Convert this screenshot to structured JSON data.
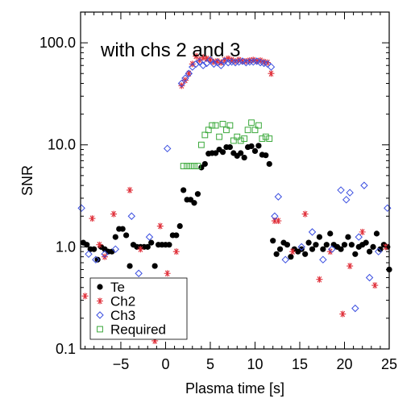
{
  "chart_data": {
    "type": "scatter",
    "annotation": "with chs 2 and 3",
    "xlabel": "Plasma time [s]",
    "ylabel": "SNR",
    "xlim": [
      -9.5,
      25
    ],
    "ylim": [
      0.1,
      200
    ],
    "yscale": "log",
    "x_ticks": [
      -5,
      0,
      5,
      10,
      15,
      20,
      25
    ],
    "x_tick_labels": [
      "−5",
      "0",
      "5",
      "10",
      "15",
      "20",
      "25"
    ],
    "y_ticks": [
      0.1,
      1,
      10,
      100
    ],
    "y_tick_labels": [
      "0.1",
      "1.0",
      "10.0",
      "100.0"
    ],
    "legend_position": "bottom-left",
    "series": [
      {
        "name": "Te",
        "marker": "filled-circle",
        "color": "#000000",
        "points": [
          [
            -9.2,
            1.1
          ],
          [
            -8.8,
            1.05
          ],
          [
            -8.4,
            0.95
          ],
          [
            -8,
            0.95
          ],
          [
            -7.6,
            0.75
          ],
          [
            -7.2,
            1.0
          ],
          [
            -6.8,
            0.95
          ],
          [
            -6.4,
            0.9
          ],
          [
            -6,
            0.9
          ],
          [
            -5.6,
            1.25
          ],
          [
            -5.2,
            1.5
          ],
          [
            -4.8,
            1.5
          ],
          [
            -4.4,
            1.3
          ],
          [
            -4,
            0.65
          ],
          [
            -3.6,
            1.05
          ],
          [
            -3.2,
            1.0
          ],
          [
            -2.8,
            1.0
          ],
          [
            -2.4,
            1.0
          ],
          [
            -2,
            1.0
          ],
          [
            -1.6,
            1.1
          ],
          [
            -1.2,
            0.65
          ],
          [
            -0.8,
            1.05
          ],
          [
            -0.4,
            1.05
          ],
          [
            0,
            1.05
          ],
          [
            0.4,
            1.05
          ],
          [
            0.8,
            1.3
          ],
          [
            1.2,
            1.3
          ],
          [
            1.6,
            1.6
          ],
          [
            2,
            3.6
          ],
          [
            2.4,
            2.9
          ],
          [
            2.8,
            2.9
          ],
          [
            3.2,
            2.7
          ],
          [
            3.6,
            3.3
          ],
          [
            4,
            6.0
          ],
          [
            4.4,
            6.5
          ],
          [
            4.8,
            8.2
          ],
          [
            5.2,
            8.3
          ],
          [
            5.6,
            8.3
          ],
          [
            6,
            9.0
          ],
          [
            6.4,
            8.5
          ],
          [
            6.8,
            9.5
          ],
          [
            7.2,
            9.5
          ],
          [
            7.6,
            8.3
          ],
          [
            8,
            7.8
          ],
          [
            8.4,
            8.3
          ],
          [
            8.8,
            7.5
          ],
          [
            9.2,
            9.5
          ],
          [
            9.6,
            9.7
          ],
          [
            10,
            8.7
          ],
          [
            10.4,
            9.8
          ],
          [
            10.8,
            8.0
          ],
          [
            11.2,
            7.9
          ],
          [
            11.6,
            6.5
          ],
          [
            12,
            1.15
          ],
          [
            12.4,
            0.85
          ],
          [
            12.8,
            0.95
          ],
          [
            13.2,
            1.1
          ],
          [
            13.6,
            1.05
          ],
          [
            14,
            0.8
          ],
          [
            14.4,
            0.95
          ],
          [
            14.8,
            0.9
          ],
          [
            15.2,
            0.95
          ],
          [
            15.6,
            0.85
          ],
          [
            16,
            1.1
          ],
          [
            16.4,
            0.95
          ],
          [
            16.8,
            1.05
          ],
          [
            17.2,
            1.25
          ],
          [
            17.6,
            0.95
          ],
          [
            18,
            1.05
          ],
          [
            18.4,
            1.35
          ],
          [
            18.8,
            1.05
          ],
          [
            19.2,
            1.0
          ],
          [
            19.6,
            0.95
          ],
          [
            20,
            1.05
          ],
          [
            20.4,
            1.25
          ],
          [
            20.8,
            1.05
          ],
          [
            21.2,
            0.85
          ],
          [
            21.6,
            1.0
          ],
          [
            22,
            1.05
          ],
          [
            22.4,
            1.1
          ],
          [
            22.8,
            0.9
          ],
          [
            23.2,
            1.0
          ],
          [
            23.6,
            1.35
          ],
          [
            24,
            0.95
          ],
          [
            24.4,
            1.05
          ],
          [
            24.8,
            1.0
          ],
          [
            25,
            0.6
          ]
        ]
      },
      {
        "name": "Ch2",
        "marker": "asterisk",
        "color": "#e0303a",
        "points": [
          [
            -9,
            0.33
          ],
          [
            -8.2,
            1.9
          ],
          [
            -7.4,
            1.05
          ],
          [
            -6.8,
            0.8
          ],
          [
            -5.8,
            2.1
          ],
          [
            -4,
            3.6
          ],
          [
            -2.8,
            0.95
          ],
          [
            -1.2,
            0.12
          ],
          [
            -0.6,
            1.6
          ],
          [
            0.2,
            0.55
          ],
          [
            1.2,
            0.9
          ],
          [
            1.8,
            38
          ],
          [
            2.2,
            43
          ],
          [
            2.6,
            50
          ],
          [
            3,
            62
          ],
          [
            3.4,
            74
          ],
          [
            3.8,
            68
          ],
          [
            4.2,
            72
          ],
          [
            4.6,
            70
          ],
          [
            5,
            68
          ],
          [
            5.4,
            65
          ],
          [
            5.8,
            66
          ],
          [
            6.2,
            64
          ],
          [
            6.6,
            68
          ],
          [
            7,
            70
          ],
          [
            7.4,
            68
          ],
          [
            7.8,
            66
          ],
          [
            8.2,
            68
          ],
          [
            8.6,
            66
          ],
          [
            9,
            66
          ],
          [
            9.4,
            67
          ],
          [
            9.8,
            68
          ],
          [
            10.2,
            66
          ],
          [
            10.6,
            67
          ],
          [
            11,
            65
          ],
          [
            11.4,
            64
          ],
          [
            11.8,
            50
          ],
          [
            12.2,
            1.8
          ],
          [
            12.6,
            1.8
          ],
          [
            14.2,
            0.9
          ],
          [
            15.6,
            2.1
          ],
          [
            17.2,
            0.48
          ],
          [
            18.4,
            0.9
          ],
          [
            19.8,
            0.22
          ],
          [
            20.6,
            0.65
          ],
          [
            22,
            1.4
          ],
          [
            23.4,
            0.42
          ],
          [
            24.6,
            1.0
          ]
        ]
      },
      {
        "name": "Ch3",
        "marker": "open-diamond",
        "color": "#3a4ee0",
        "points": [
          [
            -9.4,
            2.4
          ],
          [
            -8.6,
            0.85
          ],
          [
            -7.8,
            0.75
          ],
          [
            -6.8,
            0.85
          ],
          [
            -5.6,
            0.95
          ],
          [
            -3.8,
            2.0
          ],
          [
            -3,
            0.55
          ],
          [
            -1.8,
            1.25
          ],
          [
            -0.6,
            0.2
          ],
          [
            0.2,
            9.2
          ],
          [
            1.8,
            40
          ],
          [
            2.2,
            45
          ],
          [
            2.6,
            50
          ],
          [
            3,
            58
          ],
          [
            3.4,
            62
          ],
          [
            3.8,
            65
          ],
          [
            4.2,
            60
          ],
          [
            4.6,
            63
          ],
          [
            5,
            68
          ],
          [
            5.4,
            62
          ],
          [
            5.8,
            64
          ],
          [
            6.2,
            60
          ],
          [
            6.6,
            66
          ],
          [
            7,
            64
          ],
          [
            7.4,
            65
          ],
          [
            7.8,
            64
          ],
          [
            8.2,
            65
          ],
          [
            8.6,
            66
          ],
          [
            9,
            64
          ],
          [
            9.4,
            65
          ],
          [
            9.8,
            65
          ],
          [
            10.2,
            66
          ],
          [
            10.6,
            64
          ],
          [
            11,
            63
          ],
          [
            11.4,
            62
          ],
          [
            11.8,
            58
          ],
          [
            12.2,
            2.0
          ],
          [
            12.6,
            3.1
          ],
          [
            13.4,
            0.75
          ],
          [
            15.2,
            1.0
          ],
          [
            16.4,
            1.4
          ],
          [
            17.6,
            0.75
          ],
          [
            18.6,
            0.95
          ],
          [
            19.6,
            3.6
          ],
          [
            20.2,
            2.9
          ],
          [
            20.6,
            3.4
          ],
          [
            21.2,
            0.25
          ],
          [
            21.6,
            1.25
          ],
          [
            22.2,
            4.0
          ],
          [
            22.8,
            0.5
          ],
          [
            23.8,
            0.9
          ],
          [
            24.8,
            2.4
          ]
        ]
      },
      {
        "name": "Required",
        "marker": "open-square",
        "color": "#3aa83a",
        "points": [
          [
            2,
            6.2
          ],
          [
            2.4,
            6.2
          ],
          [
            2.8,
            6.2
          ],
          [
            3.2,
            6.2
          ],
          [
            3.6,
            6.2
          ],
          [
            4,
            10
          ],
          [
            4.4,
            12.5
          ],
          [
            4.8,
            14
          ],
          [
            5.2,
            15.5
          ],
          [
            5.6,
            15.5
          ],
          [
            6,
            12
          ],
          [
            6.4,
            16
          ],
          [
            6.8,
            14
          ],
          [
            7.2,
            15.5
          ],
          [
            7.6,
            11
          ],
          [
            8,
            12
          ],
          [
            8.4,
            11
          ],
          [
            8.8,
            11.5
          ],
          [
            9.2,
            14
          ],
          [
            9.6,
            16.5
          ],
          [
            10,
            14
          ],
          [
            10.4,
            15.5
          ],
          [
            10.8,
            11.5
          ],
          [
            11.2,
            12
          ],
          [
            11.6,
            11.5
          ]
        ]
      }
    ]
  }
}
